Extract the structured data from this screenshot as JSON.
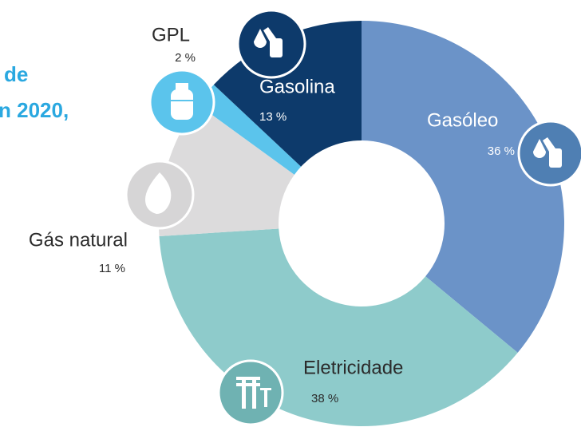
{
  "chart_data": {
    "type": "pie",
    "title_lines": [
      "de",
      "n 2020,"
    ],
    "categories": [
      "Gasóleo",
      "Eletricidade",
      "Gás natural",
      "GPL",
      "Gasolina"
    ],
    "values": [
      36,
      38,
      11,
      2,
      13
    ],
    "value_labels": [
      "36 %",
      "38 %",
      "11 %",
      "2 %",
      "13 %"
    ],
    "colors": [
      "#6b93c8",
      "#8ecbcb",
      "#dcdbdc",
      "#5bc4ec",
      "#0d3a6b"
    ],
    "donut": true
  }
}
